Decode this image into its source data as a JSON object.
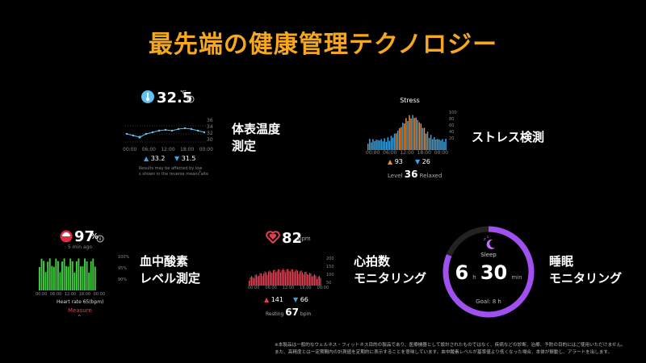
{
  "headline": "最先端の健康管理テクノロジー",
  "colors": {
    "accent": "#f5a81e",
    "temp": "#5fc3f0",
    "stress_high": "#f08a30",
    "stress_low": "#3aa3e0",
    "spo2": "#3fcf3f",
    "heart": "#e04050",
    "sleep": "#a050f0"
  },
  "temperature": {
    "icon": "thermometer-icon",
    "value": "32.5",
    "unit": "℃",
    "max": "33.2",
    "min": "31.5",
    "axis": [
      "00:00",
      "06:00",
      "12:00",
      "18:00",
      "00:00"
    ],
    "scale": [
      "36",
      "34",
      "32",
      "30"
    ],
    "note_1": "Results may be affected by low",
    "note_2": "s shown in the reverse means alte",
    "label_1": "体表温度",
    "label_2": "測定"
  },
  "stress": {
    "title": "Stress",
    "max": "93",
    "min": "26",
    "level_label": "Level",
    "level_value": "36",
    "level_state": "Relaxed",
    "axis": [
      "00:00",
      "06:00",
      "12:00",
      "18:00",
      "00:00"
    ],
    "scale": [
      "100",
      "80",
      "60",
      "40",
      "20"
    ],
    "label": "ストレス検測"
  },
  "spo2": {
    "icon": "blood-drop-icon",
    "value": "97",
    "unit": "%",
    "ago": "5 min ago",
    "axis": [
      "00:00",
      "06:00",
      "12:00",
      "18:00",
      "00:00"
    ],
    "scale": [
      "100%",
      "95%",
      "90%"
    ],
    "hr": "Heart rate 65(bpm)",
    "measure": "Measure",
    "label_1": "血中酸素",
    "label_2": "レベル測定"
  },
  "heart": {
    "icon": "heart-icon",
    "value": "82",
    "unit": "bpm",
    "max": "141",
    "min": "66",
    "resting_label": "Resting",
    "resting_value": "67",
    "resting_unit": "bpm",
    "axis": [
      "00:00",
      "06:00",
      "12:00",
      "18:00",
      "00:00"
    ],
    "scale": [
      "200",
      "150",
      "100",
      "50"
    ],
    "label_1": "心拍数",
    "label_2": "モニタリング"
  },
  "sleep": {
    "icon": "moon-icon",
    "title": "Sleep",
    "hours": "6",
    "h_unit": "h",
    "minutes": "30",
    "m_unit": "min",
    "goal": "Goal: 8 h",
    "goal_fraction": 0.8125,
    "label_1": "睡眠",
    "label_2": "モニタリング"
  },
  "disclaimer_1": "※本製品は一般的なウェルネス・フィットネス目的の製品であり、医療機器として設計されたものではなく、疾病などの診断、治療、予防の目的にはご使用いただけません。",
  "disclaimer_2": "また、高精度とは一定期間内の計測値を定期的に表示することを意味しています。血中酸素レベルが基準値より低くなった場合、本体が振動し、アラートを出します。"
}
